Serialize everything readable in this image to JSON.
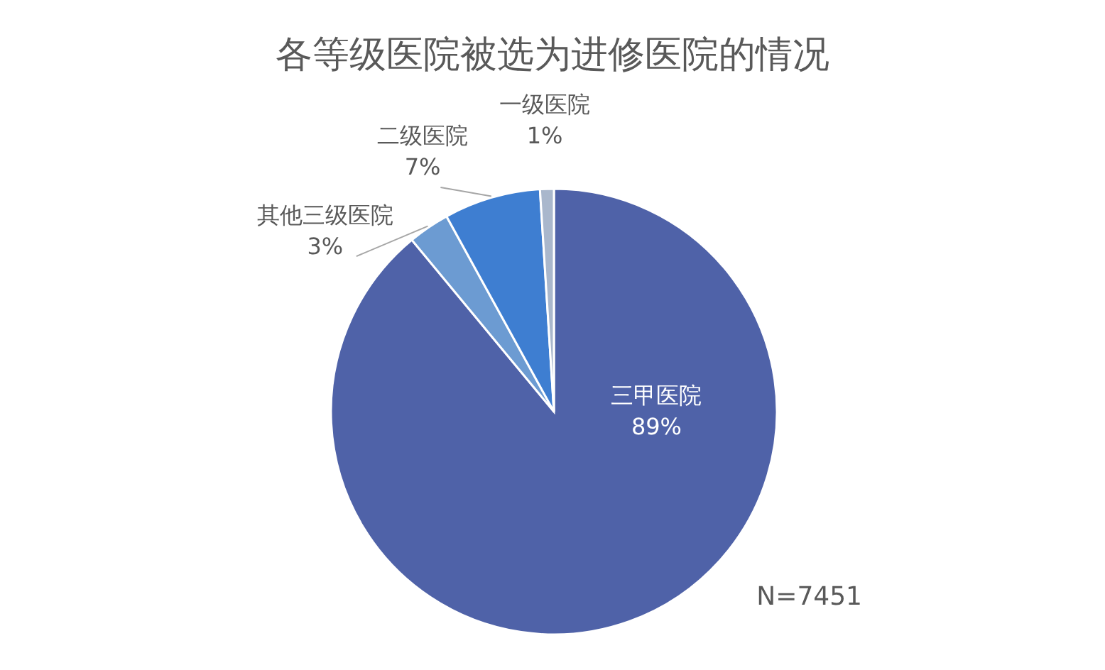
{
  "chart_data": {
    "type": "pie",
    "title": "各等级医院被选为进修医院的情况",
    "categories": [
      "三甲医院",
      "其他三级医院",
      "二级医院",
      "一级医院"
    ],
    "values": [
      89,
      3,
      7,
      1
    ],
    "colors": [
      "#4f62a8",
      "#6c9bd2",
      "#3e7ed1",
      "#a9b7cc"
    ],
    "value_labels": [
      "89%",
      "3%",
      "7%",
      "1%"
    ],
    "annotations": [
      "N=7451"
    ]
  }
}
